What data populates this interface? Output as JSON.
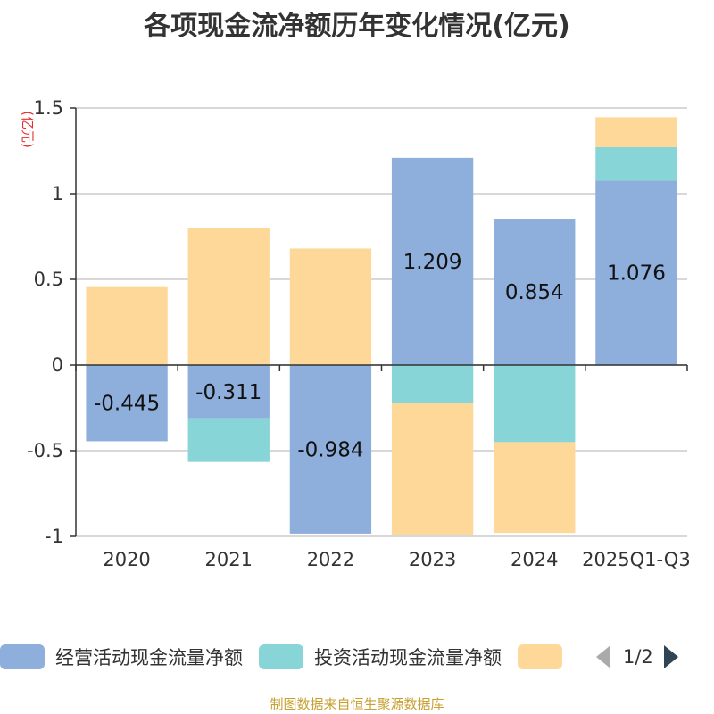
{
  "chart_data": {
    "type": "bar",
    "stacked": true,
    "title": "各项现金流净额历年变化情况(亿元)",
    "ylabel": "(亿元)",
    "categories": [
      "2020",
      "2021",
      "2022",
      "2023",
      "2024",
      "2025Q1-Q3"
    ],
    "ylim": [
      -1,
      1.5
    ],
    "yticks": [
      -1,
      -0.5,
      0,
      0.5,
      1,
      1.5
    ],
    "ytick_labels": [
      "-1",
      "-0.5",
      "0",
      "0.5",
      "1",
      "1.5"
    ],
    "grid": true,
    "series": [
      {
        "name": "经营活动现金流量净额",
        "color": "#8eaedb",
        "values": [
          -0.445,
          -0.311,
          -0.984,
          1.209,
          0.854,
          1.076
        ],
        "labels": [
          "-0.445",
          "-0.311",
          "-0.984",
          "1.209",
          "0.854",
          "1.076"
        ]
      },
      {
        "name": "投资活动现金流量净额",
        "color": "#88d5d8",
        "values": [
          0,
          -0.255,
          0,
          -0.22,
          -0.45,
          0.195
        ],
        "labels": []
      },
      {
        "name": "",
        "color": "#fed899",
        "values": [
          0.455,
          0.8,
          0.68,
          -0.77,
          -0.53,
          0.175
        ],
        "labels": []
      }
    ]
  },
  "legend": {
    "page_label": "1/2"
  },
  "source_note": "制图数据来自恒生聚源数据库"
}
